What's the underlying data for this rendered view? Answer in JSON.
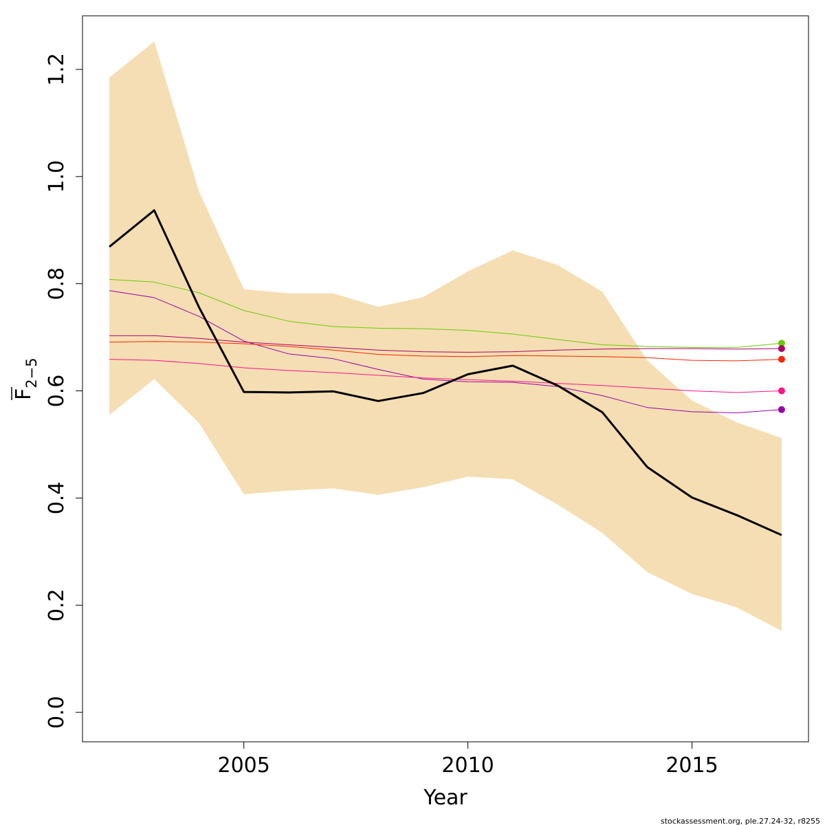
{
  "chart_data": {
    "type": "line",
    "xlabel": "Year",
    "ylabel": {
      "base": "F",
      "subscript": "2−5"
    },
    "xlim": [
      2001.4,
      2017.6
    ],
    "ylim": [
      -0.055,
      1.3
    ],
    "xticks": [
      2005,
      2010,
      2015
    ],
    "yticks": [
      0.0,
      0.2,
      0.4,
      0.6,
      0.8,
      1.0,
      1.2
    ],
    "ytick_labels": [
      "0.0",
      "0.2",
      "0.4",
      "0.6",
      "0.8",
      "1.0",
      "1.2"
    ],
    "x": [
      2002,
      2003,
      2004,
      2005,
      2006,
      2007,
      2008,
      2009,
      2010,
      2011,
      2012,
      2013,
      2014,
      2015,
      2016,
      2017
    ],
    "confidence_band": {
      "color": "#F5DEB3",
      "upper": [
        1.185,
        1.252,
        0.972,
        0.79,
        0.782,
        0.782,
        0.757,
        0.775,
        0.823,
        0.862,
        0.835,
        0.785,
        0.657,
        0.582,
        0.541,
        0.512
      ],
      "lower": [
        0.555,
        0.622,
        0.54,
        0.407,
        0.414,
        0.418,
        0.406,
        0.42,
        0.44,
        0.435,
        0.388,
        0.335,
        0.262,
        0.221,
        0.196,
        0.152
      ]
    },
    "series": [
      {
        "color": "#000000",
        "width": 3,
        "values": [
          0.869,
          0.937,
          0.756,
          0.598,
          0.597,
          0.599,
          0.581,
          0.596,
          0.631,
          0.647,
          0.61,
          0.56,
          0.458,
          0.401,
          0.368,
          0.331
        ]
      },
      {
        "color": "#66CC00",
        "width": 1,
        "endpoint": true,
        "values": [
          0.808,
          0.803,
          0.783,
          0.75,
          0.73,
          0.72,
          0.717,
          0.716,
          0.713,
          0.706,
          0.696,
          0.686,
          0.683,
          0.681,
          0.681,
          0.689
        ]
      },
      {
        "color": "#9900AA",
        "width": 1,
        "endpoint": true,
        "values": [
          0.787,
          0.774,
          0.739,
          0.693,
          0.669,
          0.66,
          0.64,
          0.622,
          0.617,
          0.616,
          0.608,
          0.591,
          0.569,
          0.561,
          0.559,
          0.565
        ]
      },
      {
        "color": "#AA0066",
        "width": 1,
        "endpoint": true,
        "values": [
          0.703,
          0.703,
          0.698,
          0.691,
          0.686,
          0.681,
          0.676,
          0.673,
          0.672,
          0.673,
          0.676,
          0.678,
          0.679,
          0.679,
          0.678,
          0.679
        ]
      },
      {
        "color": "#FF2200",
        "width": 1,
        "endpoint": true,
        "values": [
          0.691,
          0.692,
          0.691,
          0.688,
          0.683,
          0.676,
          0.668,
          0.665,
          0.664,
          0.666,
          0.665,
          0.664,
          0.662,
          0.657,
          0.656,
          0.659
        ]
      },
      {
        "color": "#FF1188",
        "width": 1,
        "endpoint": true,
        "values": [
          0.659,
          0.657,
          0.651,
          0.643,
          0.638,
          0.634,
          0.629,
          0.624,
          0.621,
          0.618,
          0.614,
          0.61,
          0.605,
          0.6,
          0.597,
          0.6
        ]
      }
    ]
  },
  "footer": "stockassessment.org, ple.27.24-32, r8255"
}
